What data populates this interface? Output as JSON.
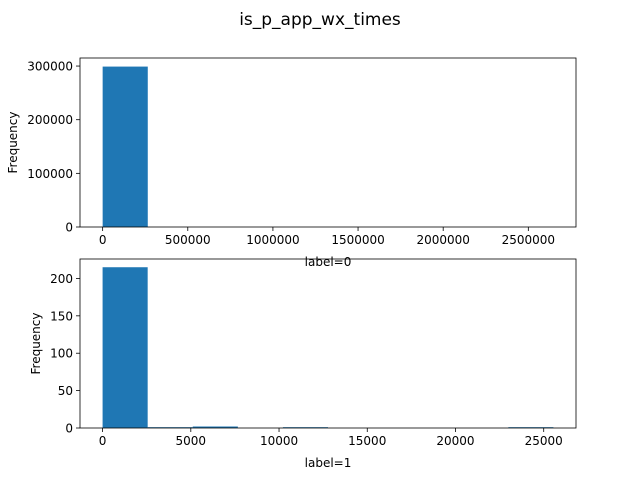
{
  "figure": {
    "suptitle": "is_p_app_wx_times"
  },
  "colors": {
    "bar": "#1f77b4",
    "axis": "#000000",
    "background": "#ffffff"
  },
  "chart_data": [
    {
      "type": "bar",
      "histogram": true,
      "title": "",
      "xlabel": "label=0",
      "ylabel": "Frequency",
      "xlim": [
        -133000,
        2780000
      ],
      "ylim": [
        0,
        315000
      ],
      "xticks": [
        0,
        500000,
        1000000,
        1500000,
        2000000,
        2500000
      ],
      "xtick_labels": [
        "0",
        "500000",
        "1000000",
        "1500000",
        "2000000",
        "2500000"
      ],
      "yticks": [
        0,
        100000,
        200000,
        300000
      ],
      "ytick_labels": [
        "0",
        "100000",
        "200000",
        "300000"
      ],
      "bin_edges": [
        0,
        265000,
        530000,
        795000,
        1060000,
        1325000,
        1590000,
        1855000,
        2120000,
        2385000,
        2650000
      ],
      "values": [
        299000,
        0,
        0,
        0,
        0,
        0,
        0,
        0,
        0,
        0
      ],
      "grid": false,
      "legend": "none"
    },
    {
      "type": "bar",
      "histogram": true,
      "title": "",
      "xlabel": "label=1",
      "ylabel": "Frequency",
      "xlim": [
        -1280,
        26830
      ],
      "ylim": [
        0,
        226
      ],
      "xticks": [
        0,
        5000,
        10000,
        15000,
        20000,
        25000
      ],
      "xtick_labels": [
        "0",
        "5000",
        "10000",
        "15000",
        "20000",
        "25000"
      ],
      "yticks": [
        0,
        50,
        100,
        150,
        200
      ],
      "ytick_labels": [
        "0",
        "50",
        "100",
        "150",
        "200"
      ],
      "bin_edges": [
        0,
        2555,
        5110,
        7665,
        10220,
        12775,
        15330,
        17885,
        20440,
        22995,
        25550
      ],
      "values": [
        215,
        1,
        2,
        0,
        1,
        0,
        0,
        0,
        0,
        1
      ],
      "grid": false,
      "legend": "none"
    }
  ]
}
